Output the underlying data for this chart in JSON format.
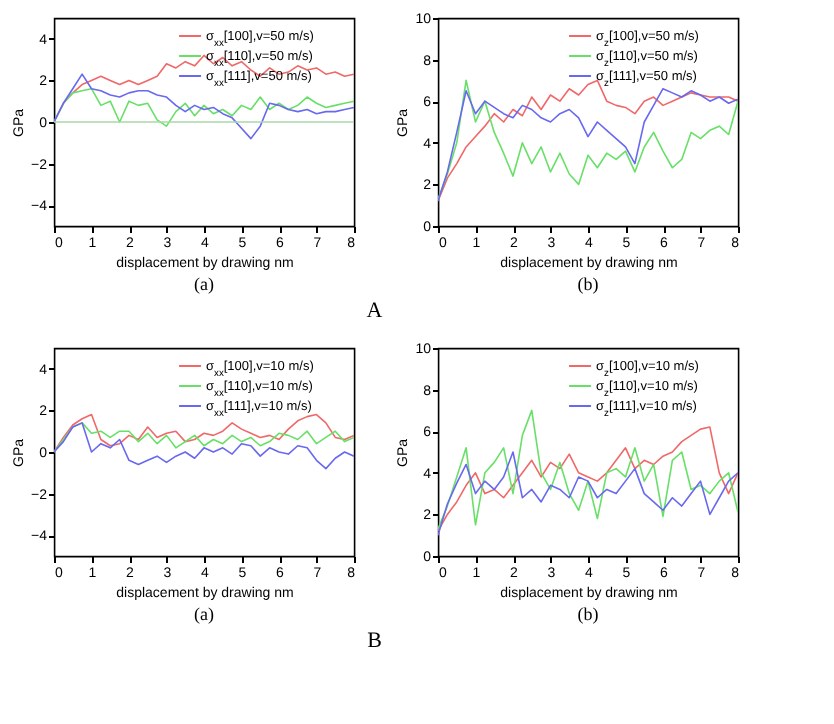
{
  "chart_data": [
    {
      "type": "line",
      "xlabel": "displacement by drawing  nm",
      "ylabel": "GPa",
      "annotations": [
        "(a)",
        "A"
      ],
      "legend": "top right",
      "x": [
        0,
        0.25,
        0.5,
        0.75,
        1,
        1.25,
        1.5,
        1.75,
        2,
        2.25,
        2.5,
        2.75,
        3,
        3.25,
        3.5,
        3.75,
        4,
        4.25,
        4.5,
        4.75,
        5,
        5.25,
        5.5,
        5.75,
        6,
        6.25,
        6.5,
        6.75,
        7,
        7.25,
        7.5,
        7.75,
        8
      ],
      "xlim": [
        0,
        8
      ],
      "xticks": [
        0,
        1,
        2,
        3,
        4,
        5,
        6,
        7,
        8
      ],
      "ylim": [
        -5,
        5
      ],
      "yticks": [
        -4,
        -2,
        0,
        2,
        4
      ],
      "ref_lines": [
        {
          "axis": "y",
          "value": 0,
          "color": "#a8d8a8"
        }
      ],
      "series": [
        {
          "name": "σ$_{xx}$[100],v=50 m/s)",
          "color": "#f06868",
          "values": [
            0,
            0.9,
            1.4,
            1.8,
            2.0,
            2.2,
            2.0,
            1.8,
            2.0,
            1.8,
            2.0,
            2.2,
            2.8,
            2.6,
            2.9,
            2.7,
            3.2,
            2.8,
            3.1,
            2.7,
            2.9,
            2.5,
            2.2,
            2.6,
            2.3,
            2.4,
            2.7,
            2.5,
            2.6,
            2.3,
            2.4,
            2.2,
            2.3
          ]
        },
        {
          "name": "σ$_{xx}$[110],v=50 m/s)",
          "color": "#68e068",
          "values": [
            0,
            0.9,
            1.4,
            1.5,
            1.6,
            0.8,
            1.0,
            0.0,
            1.0,
            0.8,
            0.9,
            0.1,
            -0.2,
            0.5,
            0.9,
            0.3,
            0.8,
            0.4,
            0.6,
            0.3,
            0.8,
            0.6,
            1.2,
            0.6,
            0.9,
            0.6,
            0.8,
            1.2,
            0.9,
            0.7,
            0.8,
            0.9,
            1.0
          ]
        },
        {
          "name": "σ$_{xx}$[111],v=50 m/s)",
          "color": "#6868f0",
          "values": [
            0,
            0.9,
            1.6,
            2.3,
            1.6,
            1.5,
            1.3,
            1.2,
            1.4,
            1.5,
            1.5,
            1.3,
            1.2,
            0.8,
            0.5,
            0.8,
            0.6,
            0.7,
            0.4,
            0.2,
            -0.3,
            -0.8,
            -0.2,
            0.9,
            0.8,
            0.6,
            0.5,
            0.6,
            0.4,
            0.5,
            0.5,
            0.6,
            0.7
          ]
        }
      ]
    },
    {
      "type": "line",
      "xlabel": "displacement by drawing  nm",
      "ylabel": "GPa",
      "annotations": [
        "(b)"
      ],
      "legend": "top right",
      "x": [
        0,
        0.25,
        0.5,
        0.75,
        1,
        1.25,
        1.5,
        1.75,
        2,
        2.25,
        2.5,
        2.75,
        3,
        3.25,
        3.5,
        3.75,
        4,
        4.25,
        4.5,
        4.75,
        5,
        5.25,
        5.5,
        5.75,
        6,
        6.25,
        6.5,
        6.75,
        7,
        7.25,
        7.5,
        7.75,
        8
      ],
      "xlim": [
        0,
        8
      ],
      "xticks": [
        0,
        1,
        2,
        3,
        4,
        5,
        6,
        7,
        8
      ],
      "ylim": [
        0,
        10
      ],
      "yticks": [
        0,
        2,
        4,
        6,
        8,
        10
      ],
      "series": [
        {
          "name": "σ$_{z}$[100],v=50 m/s)",
          "color": "#f06868",
          "values": [
            1.2,
            2.3,
            3.0,
            3.8,
            4.3,
            4.8,
            5.4,
            5.0,
            5.6,
            5.3,
            6.2,
            5.6,
            6.3,
            6.0,
            6.6,
            6.3,
            6.8,
            7.0,
            6.0,
            5.8,
            5.7,
            5.4,
            6.0,
            6.2,
            5.8,
            6.0,
            6.2,
            6.4,
            6.3,
            6.2,
            6.2,
            6.2,
            6.0
          ]
        },
        {
          "name": "σ$_{z}$[110],v=50 m/s)",
          "color": "#68e068",
          "values": [
            1.3,
            2.5,
            4.0,
            7.0,
            5.0,
            6.0,
            4.5,
            3.5,
            2.4,
            4.0,
            3.0,
            3.8,
            2.6,
            3.5,
            2.5,
            2.0,
            3.4,
            2.8,
            3.5,
            3.2,
            3.6,
            2.6,
            3.8,
            4.5,
            3.6,
            2.8,
            3.2,
            4.5,
            4.2,
            4.6,
            4.8,
            4.4,
            6.0
          ]
        },
        {
          "name": "σ$_{z}$[111],v=50 m/s)",
          "color": "#6868f0",
          "values": [
            1.2,
            2.6,
            4.5,
            6.5,
            5.4,
            6.0,
            5.7,
            5.4,
            5.2,
            5.8,
            5.6,
            5.2,
            5.0,
            5.4,
            5.6,
            5.2,
            4.3,
            5.0,
            4.6,
            4.2,
            3.8,
            3.0,
            5.0,
            5.8,
            6.6,
            6.4,
            6.2,
            6.5,
            6.3,
            6.0,
            6.2,
            5.9,
            6.1
          ]
        }
      ]
    },
    {
      "type": "line",
      "xlabel": "displacement by drawing  nm",
      "ylabel": "GPa",
      "annotations": [
        "(a)",
        "B"
      ],
      "legend": "top right",
      "x": [
        0,
        0.25,
        0.5,
        0.75,
        1,
        1.25,
        1.5,
        1.75,
        2,
        2.25,
        2.5,
        2.75,
        3,
        3.25,
        3.5,
        3.75,
        4,
        4.25,
        4.5,
        4.75,
        5,
        5.25,
        5.5,
        5.75,
        6,
        6.25,
        6.5,
        6.75,
        7,
        7.25,
        7.5,
        7.75,
        8
      ],
      "xlim": [
        0,
        8
      ],
      "xticks": [
        0,
        1,
        2,
        3,
        4,
        5,
        6,
        7,
        8
      ],
      "ylim": [
        -5,
        5
      ],
      "yticks": [
        -4,
        -2,
        0,
        2,
        4
      ],
      "series": [
        {
          "name": "σ$_{xx}$[100],v=10 m/s)",
          "color": "#f06868",
          "values": [
            0,
            0.7,
            1.3,
            1.6,
            1.8,
            0.6,
            0.3,
            0.4,
            0.8,
            0.6,
            1.2,
            0.7,
            0.9,
            1.0,
            0.5,
            0.6,
            0.9,
            0.8,
            1.0,
            1.4,
            1.1,
            0.9,
            0.7,
            0.8,
            0.6,
            1.1,
            1.5,
            1.7,
            1.8,
            1.4,
            0.7,
            0.6,
            0.8
          ]
        },
        {
          "name": "σ$_{xx}$[110],v=10 m/s)",
          "color": "#68e068",
          "values": [
            0,
            0.6,
            1.2,
            1.4,
            0.9,
            1.0,
            0.7,
            1.0,
            1.0,
            0.5,
            0.9,
            0.4,
            0.8,
            0.2,
            0.5,
            0.8,
            0.3,
            0.6,
            0.4,
            0.8,
            0.5,
            0.7,
            0.3,
            0.5,
            0.9,
            0.8,
            0.6,
            1.0,
            0.4,
            0.7,
            1.0,
            0.5,
            0.7
          ]
        },
        {
          "name": "σ$_{xx}$[111],v=10 m/s)",
          "color": "#6868f0",
          "values": [
            0,
            0.5,
            1.2,
            1.4,
            0.0,
            0.4,
            0.2,
            0.6,
            -0.4,
            -0.6,
            -0.4,
            -0.2,
            -0.5,
            -0.2,
            0.0,
            -0.3,
            0.2,
            0.0,
            0.2,
            -0.1,
            0.4,
            0.3,
            -0.2,
            0.2,
            0.0,
            -0.1,
            0.3,
            0.2,
            -0.4,
            -0.8,
            -0.3,
            0.0,
            -0.2
          ]
        }
      ]
    },
    {
      "type": "line",
      "xlabel": "displacement by drawing  nm",
      "ylabel": "GPa",
      "annotations": [
        "(b)"
      ],
      "legend": "top right",
      "x": [
        0,
        0.25,
        0.5,
        0.75,
        1,
        1.25,
        1.5,
        1.75,
        2,
        2.25,
        2.5,
        2.75,
        3,
        3.25,
        3.5,
        3.75,
        4,
        4.25,
        4.5,
        4.75,
        5,
        5.25,
        5.5,
        5.75,
        6,
        6.25,
        6.5,
        6.75,
        7,
        7.25,
        7.5,
        7.75,
        8
      ],
      "xlim": [
        0,
        8
      ],
      "xticks": [
        0,
        1,
        2,
        3,
        4,
        5,
        6,
        7,
        8
      ],
      "ylim": [
        0,
        10
      ],
      "yticks": [
        0,
        2,
        4,
        6,
        8,
        10
      ],
      "series": [
        {
          "name": "σ$_{z}$[100],v=10 m/s)",
          "color": "#f06868",
          "values": [
            1.2,
            2.0,
            2.6,
            3.4,
            4.0,
            3.0,
            3.2,
            2.8,
            3.4,
            4.0,
            4.6,
            3.8,
            4.5,
            4.2,
            4.9,
            4.0,
            3.8,
            3.6,
            4.0,
            4.6,
            5.2,
            4.2,
            4.6,
            4.4,
            4.8,
            5.0,
            5.5,
            5.8,
            6.1,
            6.2,
            4.0,
            3.0,
            4.0
          ]
        },
        {
          "name": "σ$_{z}$[110],v=10 m/s)",
          "color": "#68e068",
          "values": [
            1.3,
            2.4,
            3.8,
            5.2,
            1.5,
            4.0,
            4.5,
            5.2,
            3.0,
            5.8,
            7.0,
            4.0,
            3.2,
            4.5,
            3.0,
            2.2,
            3.6,
            1.8,
            4.0,
            4.2,
            3.8,
            5.2,
            3.6,
            4.4,
            1.9,
            4.6,
            5.0,
            3.2,
            3.4,
            3.0,
            3.6,
            4.0,
            2.1
          ]
        },
        {
          "name": "σ$_{z}$[111],v=10 m/s)",
          "color": "#6868f0",
          "values": [
            1.0,
            2.5,
            3.5,
            4.4,
            3.0,
            3.6,
            3.2,
            3.8,
            5.0,
            2.8,
            3.2,
            2.6,
            3.4,
            3.2,
            2.8,
            3.8,
            3.6,
            2.8,
            3.2,
            3.0,
            3.6,
            4.2,
            3.0,
            2.6,
            2.2,
            2.8,
            2.4,
            3.0,
            3.6,
            2.0,
            2.8,
            3.6,
            4.0
          ]
        }
      ]
    }
  ]
}
